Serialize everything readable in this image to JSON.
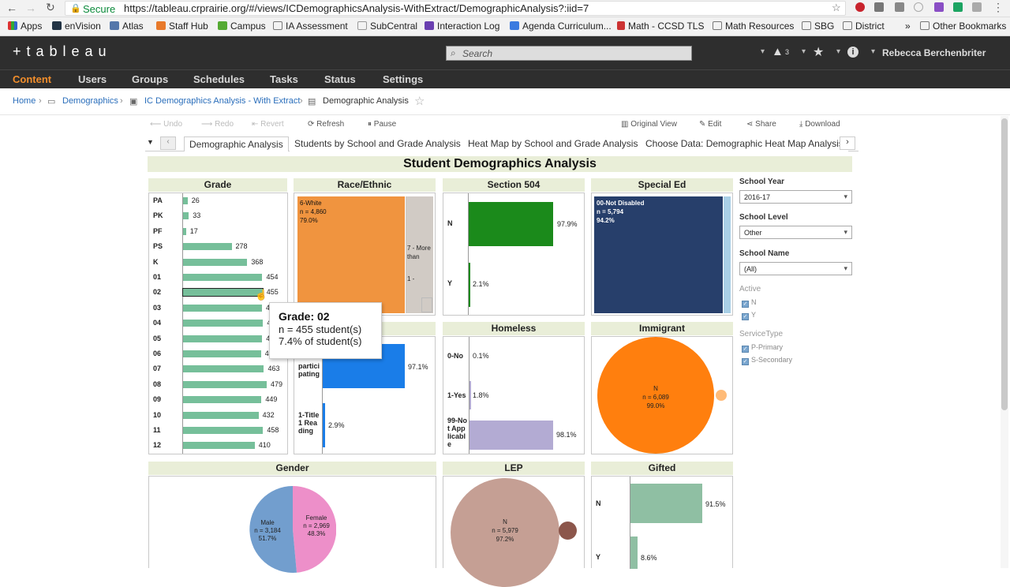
{
  "browser": {
    "secure_label": "Secure",
    "url": "https://tableau.crprairie.org/#/views/ICDemographicsAnalysis-WithExtract/DemographicAnalysis?:iid=7",
    "bookmarks": [
      "Apps",
      "enVision",
      "Atlas",
      "Staff Hub",
      "Campus",
      "IA Assessment",
      "SubCentral",
      "Interaction Log",
      "Agenda Curriculum...",
      "Math - CCSD TLS",
      "Math Resources",
      "SBG",
      "District"
    ],
    "overflow": "»",
    "other_bookmarks": "Other Bookmarks"
  },
  "tableau": {
    "logo": "+ t a b l e a u",
    "search_placeholder": "Search",
    "alert_count": "3",
    "user": "Rebecca Berchenbriter",
    "nav": [
      "Content",
      "Users",
      "Groups",
      "Schedules",
      "Tasks",
      "Status",
      "Settings"
    ],
    "breadcrumb": [
      "Home",
      "Demographics",
      "IC Demographics Analysis - With Extract",
      "Demographic Analysis"
    ],
    "toolbar": {
      "undo": "Undo",
      "redo": "Redo",
      "revert": "Revert",
      "refresh": "Refresh",
      "pause": "Pause",
      "original": "Original View",
      "edit": "Edit",
      "share": "Share",
      "download": "Download"
    },
    "tabs": [
      "Demographic Analysis",
      "Students by School and Grade Analysis",
      "Heat Map by School and Grade Analysis",
      "Choose Data: Demographic Heat Map Analysis"
    ]
  },
  "dashboard": {
    "title": "Student Demographics Analysis",
    "panel_titles": {
      "grade": "Grade",
      "race": "Race/Ethnic",
      "section504": "Section 504",
      "special_ed": "Special Ed",
      "homeless": "Homeless",
      "immigrant": "Immigrant",
      "gender": "Gender",
      "lep": "LEP",
      "gifted": "Gifted"
    },
    "grade": [
      {
        "label": "PA",
        "value": 26
      },
      {
        "label": "PK",
        "value": 33
      },
      {
        "label": "PF",
        "value": 17
      },
      {
        "label": "PS",
        "value": 278
      },
      {
        "label": "K",
        "value": 368
      },
      {
        "label": "01",
        "value": 454
      },
      {
        "label": "02",
        "value": 455
      },
      {
        "label": "03",
        "value": "44"
      },
      {
        "label": "04",
        "value": "45"
      },
      {
        "label": "05",
        "value": "4"
      },
      {
        "label": "06",
        "value": "4"
      },
      {
        "label": "07",
        "value": 463
      },
      {
        "label": "08",
        "value": 479
      },
      {
        "label": "09",
        "value": 449
      },
      {
        "label": "10",
        "value": 432
      },
      {
        "label": "11",
        "value": 458
      },
      {
        "label": "12",
        "value": 410
      }
    ],
    "race": {
      "main_label": "6-White",
      "main_n": "n = 4,860",
      "main_pct": "79.0%",
      "side1": "7 - More than",
      "side2": "1 -"
    },
    "section504": [
      {
        "label": "N",
        "pct": "97.9%"
      },
      {
        "label": "Y",
        "pct": "2.1%"
      }
    ],
    "special_ed": {
      "label": "00-Not Disabled",
      "n": "n = 5,794",
      "pct": "94.2%"
    },
    "title1": [
      {
        "label": "partici pating",
        "pct": "97.1%"
      },
      {
        "label": "1-Title 1 Rea ding",
        "pct": "2.9%"
      }
    ],
    "homeless": [
      {
        "label": "0-No",
        "pct": "0.1%"
      },
      {
        "label": "1-Yes",
        "pct": "1.8%"
      },
      {
        "label": "99-No t App licabl e",
        "pct": "98.1%"
      }
    ],
    "immigrant": {
      "label": "N",
      "n": "n = 6,089",
      "pct": "99.0%"
    },
    "gender": [
      {
        "label": "Male",
        "n": "n = 3,184",
        "pct": "51.7%"
      },
      {
        "label": "Female",
        "n": "n = 2,969",
        "pct": "48.3%"
      }
    ],
    "lep": {
      "label": "N",
      "n": "n = 5,979",
      "pct": "97.2%"
    },
    "gifted": [
      {
        "label": "N",
        "pct": "91.5%"
      },
      {
        "label": "Y",
        "pct": "8.6%"
      }
    ],
    "tooltip": {
      "title": "Grade: 02",
      "line1": "n = 455 student(s)",
      "line2": "7.4% of student(s)"
    }
  },
  "filters": {
    "school_year": {
      "label": "School Year",
      "value": "2016-17"
    },
    "school_level": {
      "label": "School Level",
      "value": "Other"
    },
    "school_name": {
      "label": "School Name",
      "value": "(All)"
    },
    "active": {
      "label": "Active",
      "options": [
        "N",
        "Y"
      ]
    },
    "service_type": {
      "label": "ServiceType",
      "options": [
        "P-Primary",
        "S-Secondary"
      ]
    }
  },
  "colors": {
    "grade_bar": "#76bf9a",
    "race_main": "#f0943f",
    "sec504": "#1b8a1b",
    "special_ed": "#273f6b",
    "title1": "#1a7de8",
    "homeless": "#b3abd3",
    "immigrant": "#ff7f0e",
    "male": "#729ece",
    "female": "#ed8fc9",
    "lep": "#c59f94",
    "gifted": "#8fbfa3"
  }
}
